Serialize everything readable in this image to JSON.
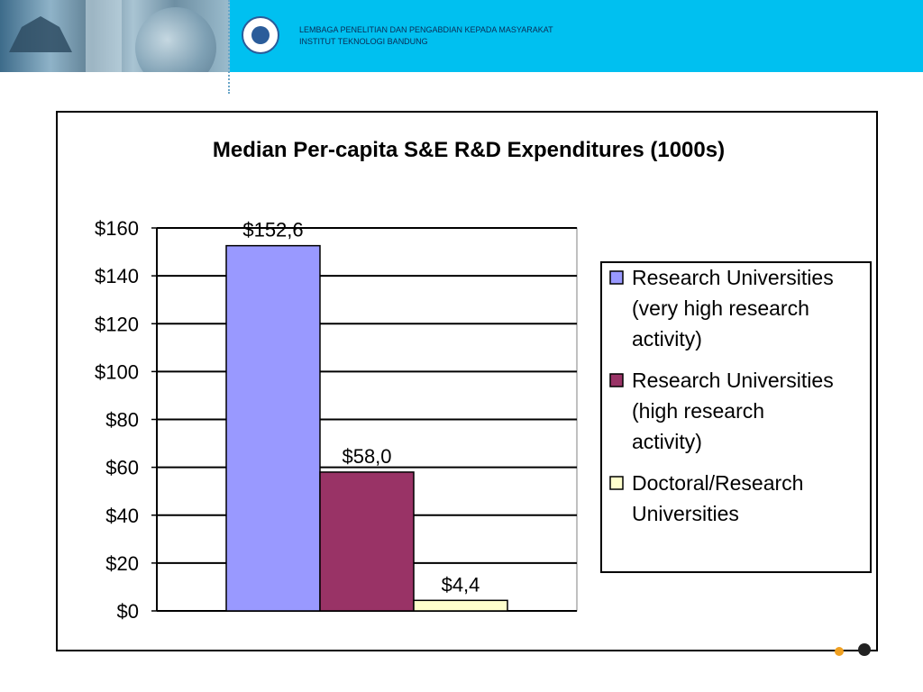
{
  "header": {
    "institution_line1": "LEMBAGA PENELITIAN DAN  PENGABDIAN KEPADA MASYARAKAT",
    "institution_line2": "INSTITUT TEKNOLOGI BANDUNG"
  },
  "chart_data": {
    "type": "bar",
    "title": "Median Per-capita S&E R&D Expenditures (1000s)",
    "xlabel": "",
    "ylabel": "",
    "ylim": [
      0,
      160
    ],
    "yticks": [
      0,
      20,
      40,
      60,
      80,
      100,
      120,
      140,
      160
    ],
    "ytick_labels": [
      "$0",
      "$20",
      "$40",
      "$60",
      "$80",
      "$100",
      "$120",
      "$140",
      "$160"
    ],
    "grid": true,
    "legend_position": "right",
    "series": [
      {
        "name": "Research Universities (very high research activity)",
        "values": [
          152.6
        ],
        "label": "$152,6",
        "color": "#9999ff",
        "legend_lines": [
          "Research Universities",
          "(very high research",
          "activity)"
        ]
      },
      {
        "name": "Research Universities (high research activity)",
        "values": [
          58.0
        ],
        "label": "$58,0",
        "color": "#993366",
        "legend_lines": [
          "Research Universities",
          "(high research",
          "activity)"
        ]
      },
      {
        "name": "Doctoral/Research Universities",
        "values": [
          4.4
        ],
        "label": "$4,4",
        "color": "#ffffcc",
        "legend_lines": [
          "Doctoral/Research",
          "Universities"
        ]
      }
    ]
  }
}
